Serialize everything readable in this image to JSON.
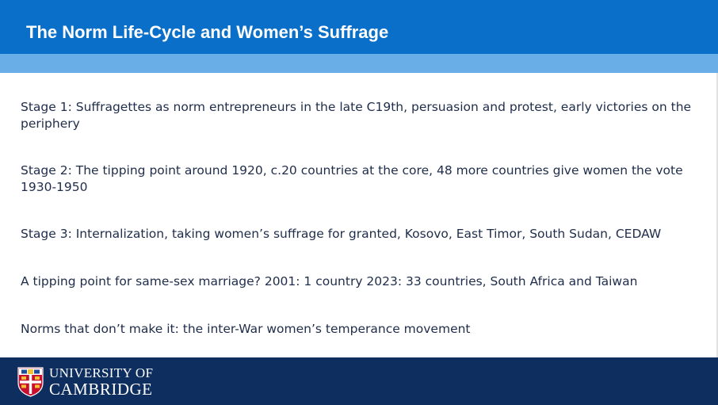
{
  "slide": {
    "title": "The Norm Life-Cycle and Women’s Suffrage",
    "bullets": [
      "Stage 1: Suffragettes as norm entrepreneurs in the late C19th, persuasion and protest, early victories on the periphery",
      "Stage 2: The tipping point around 1920, c.20 countries at the core, 48 more countries give women the vote 1930-1950",
      "Stage 3: Internalization, taking women’s suffrage for granted, Kosovo, East Timor, South Sudan, CEDAW",
      "A tipping point for same-sex marriage? 2001: 1 country 2023: 33 countries, South Africa and Taiwan",
      "Norms that don’t make it: the inter-War women’s temperance movement"
    ]
  },
  "footer": {
    "logo_line1": "UNIVERSITY OF",
    "logo_line2": "CAMBRIDGE",
    "logo_icon": "university-crest-icon"
  },
  "colors": {
    "title_bar": "#0a6fc9",
    "accent_bar": "#6aaee8",
    "footer": "#0d2e5e",
    "body_text": "#1f2d4a",
    "crest_red": "#c8102e",
    "crest_gold": "#f2c230"
  }
}
